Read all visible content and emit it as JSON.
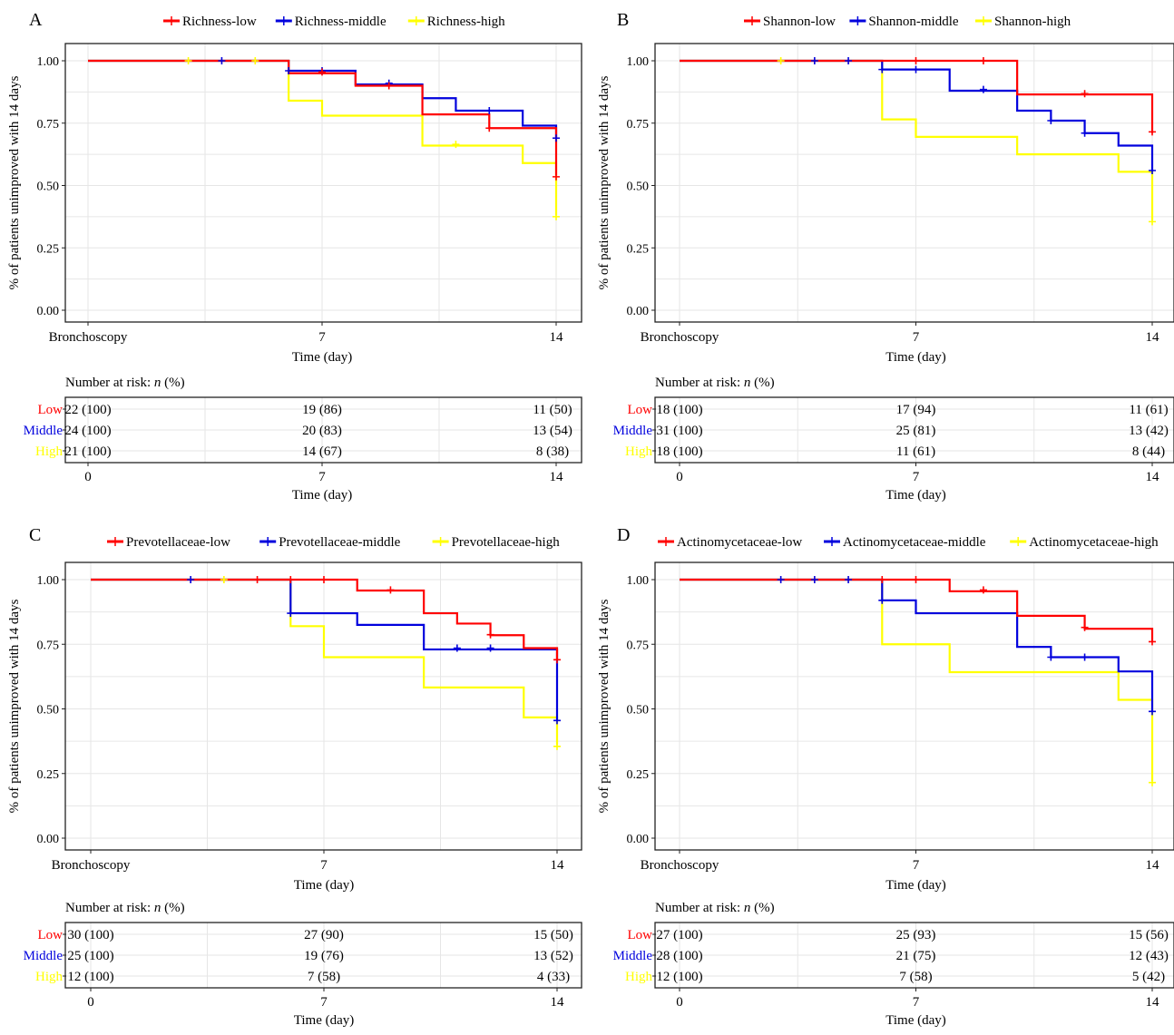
{
  "colors": {
    "low": "#ff0000",
    "middle": "#0000dd",
    "high": "#ffff00",
    "axis": "#222222",
    "grid": "#e6e6e6"
  },
  "common": {
    "ylabel": "% of patients unimproved with 14 days",
    "yticks": [
      "0.00",
      "0.25",
      "0.50",
      "0.75",
      "1.00"
    ],
    "xticks": [
      "Bronchoscopy",
      "7",
      "14"
    ],
    "xlabel": "Time (day)",
    "risk_title_prefix": "Number at risk: ",
    "risk_title_n": "n",
    "risk_title_suffix": " (%)",
    "risk_xticks": [
      "0",
      "7",
      "14"
    ],
    "risk_xlabel": "Time (day)",
    "group_labels": [
      "Low",
      "Middle",
      "High"
    ]
  },
  "chart_data": [
    {
      "panel": "A",
      "type": "line",
      "step": true,
      "xlim": [
        0,
        14
      ],
      "ylim": [
        0,
        1
      ],
      "series": [
        {
          "name": "Richness-low",
          "steps": [
            [
              0,
              1.0
            ],
            [
              6,
              0.95
            ],
            [
              8,
              0.9
            ],
            [
              10,
              0.785
            ],
            [
              12,
              0.73
            ],
            [
              14,
              0.54
            ]
          ],
          "censors": [
            [
              7,
              0.955
            ],
            [
              9,
              0.9
            ],
            [
              12,
              0.73
            ],
            [
              14,
              0.535
            ]
          ]
        },
        {
          "name": "Richness-middle",
          "steps": [
            [
              0,
              1.0
            ],
            [
              6,
              0.96
            ],
            [
              8,
              0.905
            ],
            [
              10,
              0.85
            ],
            [
              11,
              0.8
            ],
            [
              13,
              0.74
            ],
            [
              14,
              0.69
            ]
          ],
          "censors": [
            [
              4,
              1.0
            ],
            [
              6,
              0.96
            ],
            [
              7,
              0.96
            ],
            [
              9,
              0.91
            ],
            [
              12,
              0.8
            ],
            [
              14,
              0.69
            ]
          ]
        },
        {
          "name": "Richness-high",
          "steps": [
            [
              0,
              1.0
            ],
            [
              6,
              0.84
            ],
            [
              7,
              0.78
            ],
            [
              10,
              0.66
            ],
            [
              13,
              0.59
            ],
            [
              14,
              0.38
            ]
          ],
          "censors": [
            [
              3,
              1.0
            ],
            [
              5,
              1.0
            ],
            [
              11,
              0.665
            ],
            [
              14,
              0.375
            ]
          ]
        }
      ],
      "risk_table": [
        [
          "22 (100)",
          "19 (86)",
          "11 (50)"
        ],
        [
          "24 (100)",
          "20 (83)",
          "13 (54)"
        ],
        [
          "21 (100)",
          "14 (67)",
          "8 (38)"
        ]
      ]
    },
    {
      "panel": "B",
      "type": "line",
      "step": true,
      "xlim": [
        0,
        14
      ],
      "ylim": [
        0,
        1
      ],
      "series": [
        {
          "name": "Shannon-low",
          "steps": [
            [
              0,
              1.0
            ],
            [
              10,
              0.865
            ],
            [
              14,
              0.71
            ]
          ],
          "censors": [
            [
              7,
              1.0
            ],
            [
              9,
              1.0
            ],
            [
              12,
              0.868
            ],
            [
              14,
              0.715
            ]
          ]
        },
        {
          "name": "Shannon-middle",
          "steps": [
            [
              0,
              1.0
            ],
            [
              6,
              0.965
            ],
            [
              8,
              0.88
            ],
            [
              10,
              0.8
            ],
            [
              11,
              0.76
            ],
            [
              12,
              0.71
            ],
            [
              13,
              0.66
            ],
            [
              14,
              0.56
            ]
          ],
          "censors": [
            [
              4,
              1.0
            ],
            [
              5,
              1.0
            ],
            [
              6,
              0.965
            ],
            [
              7,
              0.965
            ],
            [
              9,
              0.885
            ],
            [
              11,
              0.76
            ],
            [
              12,
              0.71
            ],
            [
              14,
              0.56
            ]
          ]
        },
        {
          "name": "Shannon-high",
          "steps": [
            [
              0,
              1.0
            ],
            [
              6,
              0.765
            ],
            [
              7,
              0.695
            ],
            [
              10,
              0.625
            ],
            [
              13,
              0.555
            ],
            [
              14,
              0.36
            ]
          ],
          "censors": [
            [
              3,
              1.0
            ],
            [
              14,
              0.355
            ]
          ]
        }
      ],
      "risk_table": [
        [
          "18 (100)",
          "17 (94)",
          "11 (61)"
        ],
        [
          "31 (100)",
          "25 (81)",
          "13 (42)"
        ],
        [
          "18 (100)",
          "11 (61)",
          "8 (44)"
        ]
      ]
    },
    {
      "panel": "C",
      "type": "line",
      "step": true,
      "xlim": [
        0,
        14
      ],
      "ylim": [
        0,
        1
      ],
      "series": [
        {
          "name": "Prevotellaceae-low",
          "steps": [
            [
              0,
              1.0
            ],
            [
              8,
              0.958
            ],
            [
              10,
              0.87
            ],
            [
              11,
              0.83
            ],
            [
              12,
              0.785
            ],
            [
              13,
              0.735
            ],
            [
              14,
              0.69
            ]
          ],
          "censors": [
            [
              5,
              1.0
            ],
            [
              6,
              1.0
            ],
            [
              7,
              1.0
            ],
            [
              9,
              0.96
            ],
            [
              12,
              0.787
            ],
            [
              14,
              0.69
            ]
          ]
        },
        {
          "name": "Prevotellaceae-middle",
          "steps": [
            [
              0,
              1.0
            ],
            [
              6,
              0.87
            ],
            [
              8,
              0.825
            ],
            [
              10,
              0.73
            ],
            [
              14,
              0.455
            ]
          ],
          "censors": [
            [
              3,
              1.0
            ],
            [
              6,
              0.87
            ],
            [
              11,
              0.735
            ],
            [
              12,
              0.735
            ],
            [
              14,
              0.455
            ]
          ]
        },
        {
          "name": "Prevotellaceae-high",
          "steps": [
            [
              0,
              1.0
            ],
            [
              6,
              0.82
            ],
            [
              7,
              0.7
            ],
            [
              10,
              0.583
            ],
            [
              13,
              0.467
            ],
            [
              14,
              0.36
            ]
          ],
          "censors": [
            [
              4,
              1.0
            ],
            [
              14,
              0.355
            ]
          ]
        }
      ],
      "risk_table": [
        [
          "30 (100)",
          "27 (90)",
          "15 (50)"
        ],
        [
          "25 (100)",
          "19 (76)",
          "13 (52)"
        ],
        [
          "12 (100)",
          "7 (58)",
          "4 (33)"
        ]
      ]
    },
    {
      "panel": "D",
      "type": "line",
      "step": true,
      "xlim": [
        0,
        14
      ],
      "ylim": [
        0,
        1
      ],
      "series": [
        {
          "name": "Actinomycetaceae-low",
          "steps": [
            [
              0,
              1.0
            ],
            [
              8,
              0.955
            ],
            [
              10,
              0.86
            ],
            [
              12,
              0.81
            ],
            [
              14,
              0.76
            ]
          ],
          "censors": [
            [
              6,
              1.0
            ],
            [
              7,
              1.0
            ],
            [
              9,
              0.96
            ],
            [
              12,
              0.815
            ],
            [
              14,
              0.76
            ]
          ]
        },
        {
          "name": "Actinomycetaceae-middle",
          "steps": [
            [
              0,
              1.0
            ],
            [
              6,
              0.92
            ],
            [
              7,
              0.87
            ],
            [
              10,
              0.74
            ],
            [
              11,
              0.7
            ],
            [
              13,
              0.645
            ],
            [
              14,
              0.49
            ]
          ],
          "censors": [
            [
              3,
              1.0
            ],
            [
              4,
              1.0
            ],
            [
              5,
              1.0
            ],
            [
              6,
              0.92
            ],
            [
              11,
              0.7
            ],
            [
              12,
              0.7
            ],
            [
              14,
              0.49
            ]
          ]
        },
        {
          "name": "Actinomycetaceae-high",
          "steps": [
            [
              0,
              1.0
            ],
            [
              6,
              0.75
            ],
            [
              8,
              0.642
            ],
            [
              13,
              0.535
            ],
            [
              14,
              0.22
            ]
          ],
          "censors": [
            [
              14,
              0.215
            ]
          ]
        }
      ],
      "risk_table": [
        [
          "27 (100)",
          "25 (93)",
          "15 (56)"
        ],
        [
          "28 (100)",
          "21 (75)",
          "12 (43)"
        ],
        [
          "12 (100)",
          "7 (58)",
          "5 (42)"
        ]
      ]
    }
  ]
}
